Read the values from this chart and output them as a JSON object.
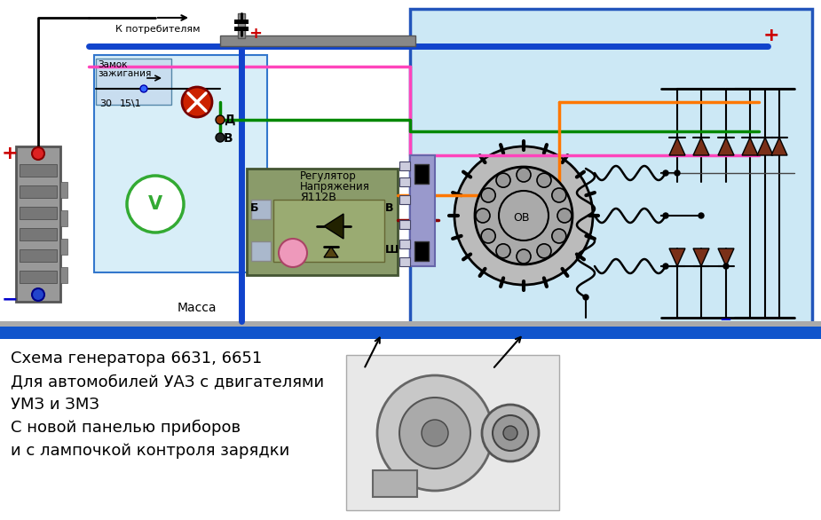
{
  "bg_color": "#ffffff",
  "gen_box_bg": "#cce8f5",
  "gen_box_edge": "#2255bb",
  "panel_bg": "#d8eef8",
  "panel_edge": "#3377cc",
  "ground_bar": "#1155cc",
  "blue_wire": "#1144cc",
  "green_wire": "#008800",
  "pink_wire": "#ff44bb",
  "orange_wire": "#ff7700",
  "dark_wire": "#880000",
  "gray_bar": "#888888",
  "diode_color": "#7a3018",
  "reg_bg": "#8a9b6a",
  "reg_inner": "#9aab7a",
  "connector_bg": "#9999cc",
  "connector_edge": "#6666aa",
  "text_lines": [
    "Схема генератора 6631, 6651",
    "Для автомобилей УАЗ с двигателями",
    "УМЗ и ЗМЗ",
    "С новой панелью приборов",
    "и с лампочкой контроля зарядки"
  ],
  "lbl_massa": "Масса",
  "lbl_consumers": "К потребителям",
  "lbl_ignition_1": "Замок",
  "lbl_ignition_2": "зажигания",
  "lbl_regulator_1": "Регулятор",
  "lbl_regulator_2": "Напряжения",
  "lbl_regulator_3": "Я112В",
  "lbl_D": "Д",
  "lbl_B": "В",
  "lbl_Sh": "Ш",
  "lbl_Bz": "Б",
  "lbl_Bv": "В",
  "lbl_OB": "ОВ",
  "lbl_30": "30",
  "lbl_151": "15\\1"
}
